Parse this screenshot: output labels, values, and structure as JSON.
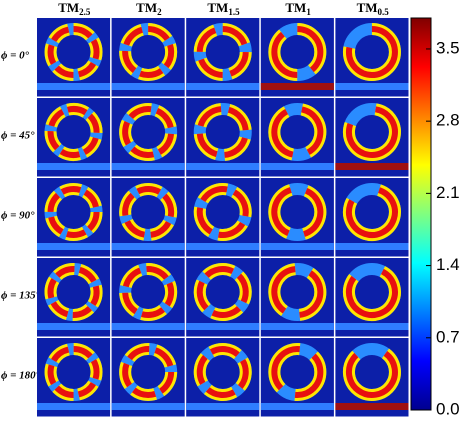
{
  "figure": {
    "columns": [
      {
        "base": "TM",
        "sub": "2.5"
      },
      {
        "base": "TM",
        "sub": "2"
      },
      {
        "base": "TM",
        "sub": "1.5"
      },
      {
        "base": "TM",
        "sub": "1"
      },
      {
        "base": "TM",
        "sub": "0.5"
      }
    ],
    "rows": [
      "ϕ = 0°",
      "ϕ = 45°",
      "ϕ = 90°",
      "ϕ = 135°",
      "ϕ = 180°"
    ],
    "colorbar": {
      "lim": [
        0,
        3.8
      ],
      "ticks": [
        {
          "value": 0,
          "label": "0.0"
        },
        0.7,
        1.4,
        2.1,
        2.8,
        3.5
      ]
    }
  }
}
